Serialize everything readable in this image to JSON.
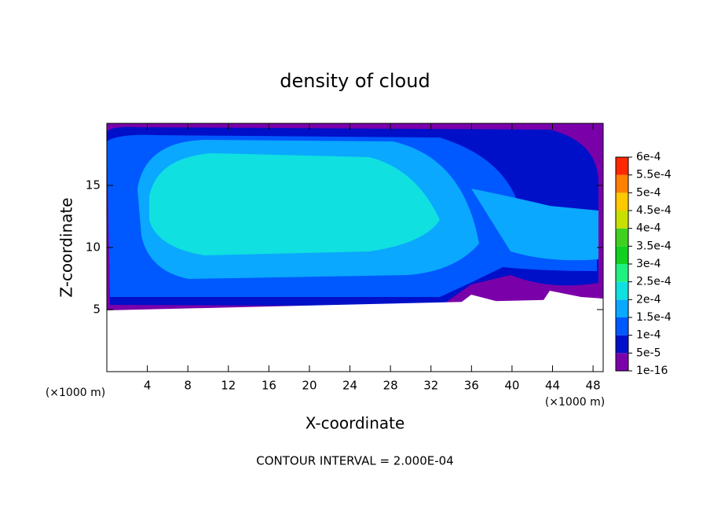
{
  "chart_data": {
    "type": "contour",
    "title": "density of cloud",
    "x_label": "X-coordinate",
    "y_label": "Z-coordinate",
    "x_unit": "(×1000 m)",
    "y_unit": "(×1000 m)",
    "annotation": "CONTOUR INTERVAL = 2.000E-04",
    "xlim": [
      0,
      49
    ],
    "ylim": [
      0,
      20
    ],
    "xticks": [
      4,
      8,
      12,
      16,
      20,
      24,
      28,
      32,
      36,
      40,
      44,
      48
    ],
    "yticks": [
      5,
      10,
      15
    ],
    "colorbar": {
      "levels": [
        1e-16,
        {
          "value": 5e-05,
          "label": "5e-5"
        },
        {
          "value": 0.0001,
          "label": "1e-4"
        },
        {
          "value": 0.00015,
          "label": "1.5e-4"
        },
        {
          "value": 0.0002,
          "label": "2e-4"
        },
        {
          "value": 0.00025,
          "label": "2.5e-4"
        },
        {
          "value": 0.0003,
          "label": "3e-4"
        },
        {
          "value": 0.00035,
          "label": "3.5e-4"
        },
        {
          "value": 0.0004,
          "label": "4e-4"
        },
        {
          "value": 0.00045,
          "label": "4.5e-4"
        },
        {
          "value": 0.0005,
          "label": "5e-4"
        },
        {
          "value": 0.00055,
          "label": "5.5e-4"
        },
        {
          "value": 0.0006,
          "label": "6e-4"
        }
      ],
      "colors": [
        "#7a00aa",
        "#0010c8",
        "#0058ff",
        "#0aa8ff",
        "#10e0e0",
        "#20f080",
        "#10d020",
        "#40d020",
        "#c8e000",
        "#ffc800",
        "#ff8000",
        "#ff2800",
        "#ff8080"
      ]
    }
  }
}
